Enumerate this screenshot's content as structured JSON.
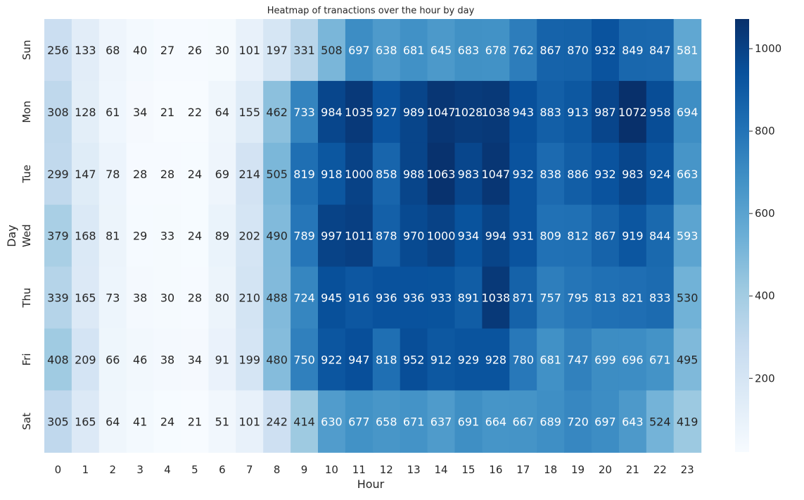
{
  "chart_data": {
    "type": "heatmap",
    "title": "Heatmap of tranactions over the hour by day",
    "xlabel": "Hour",
    "ylabel": "Day",
    "x": [
      "0",
      "1",
      "2",
      "3",
      "4",
      "5",
      "6",
      "7",
      "8",
      "9",
      "10",
      "11",
      "12",
      "13",
      "14",
      "15",
      "16",
      "17",
      "18",
      "19",
      "20",
      "21",
      "22",
      "23"
    ],
    "y": [
      "Sun",
      "Mon",
      "Tue",
      "Wed",
      "Thu",
      "Fri",
      "Sat"
    ],
    "values": [
      [
        256,
        133,
        68,
        40,
        27,
        26,
        30,
        101,
        197,
        331,
        508,
        697,
        638,
        681,
        645,
        683,
        678,
        762,
        867,
        870,
        932,
        849,
        847,
        581
      ],
      [
        308,
        128,
        61,
        34,
        21,
        22,
        64,
        155,
        462,
        733,
        984,
        1035,
        927,
        989,
        1047,
        1028,
        1038,
        943,
        883,
        913,
        987,
        1072,
        958,
        694
      ],
      [
        299,
        147,
        78,
        28,
        28,
        24,
        69,
        214,
        505,
        819,
        918,
        1000,
        858,
        988,
        1063,
        983,
        1047,
        932,
        838,
        886,
        932,
        983,
        924,
        663
      ],
      [
        379,
        168,
        81,
        29,
        33,
        24,
        89,
        202,
        490,
        789,
        997,
        1011,
        878,
        970,
        1000,
        934,
        994,
        931,
        809,
        812,
        867,
        919,
        844,
        593
      ],
      [
        339,
        165,
        73,
        38,
        30,
        28,
        80,
        210,
        488,
        724,
        945,
        916,
        936,
        936,
        933,
        891,
        1038,
        871,
        757,
        795,
        813,
        821,
        833,
        530
      ],
      [
        408,
        209,
        66,
        46,
        38,
        34,
        91,
        199,
        480,
        750,
        922,
        947,
        818,
        952,
        912,
        929,
        928,
        780,
        681,
        747,
        699,
        696,
        671,
        495
      ],
      [
        305,
        165,
        64,
        41,
        24,
        21,
        51,
        101,
        242,
        414,
        630,
        677,
        658,
        671,
        637,
        691,
        664,
        667,
        689,
        720,
        697,
        643,
        524,
        419
      ]
    ],
    "colorbar": {
      "min": 21,
      "max": 1072,
      "ticks": [
        "200",
        "400",
        "600",
        "800",
        "1000"
      ],
      "colormap": "Blues"
    },
    "grid": false
  }
}
